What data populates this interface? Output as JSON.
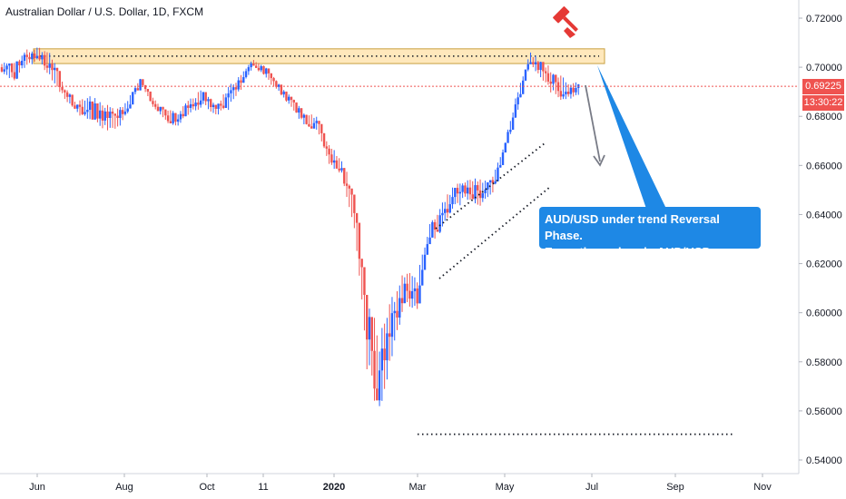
{
  "chart_data": {
    "type": "candlestick",
    "title": "Australian Dollar / U.S. Dollar, 1D, FXCM",
    "x_ticks": [
      "Jun",
      "Aug",
      "Oct",
      "11",
      "2020",
      "Mar",
      "May",
      "Jul",
      "Sep",
      "Nov"
    ],
    "y_ticks": [
      "0.72000",
      "0.70000",
      "0.68000",
      "0.66000",
      "0.64000",
      "0.62000",
      "0.60000",
      "0.58000",
      "0.56000",
      "0.54000"
    ],
    "ylim": [
      0.536,
      0.726
    ],
    "last_price": "0.69225",
    "countdown": "13:30:22",
    "annotation_lines": [
      "AUD/USD under trend Reversal Phase.",
      "Expecting a drop in AUD/USD very soon"
    ],
    "resistance_zone": [
      0.7015,
      0.7075
    ],
    "support_level": 0.5505,
    "waypoints": [
      [
        0.6975,
        0.7025
      ],
      [
        0.6935,
        0.7035
      ],
      [
        0.7005,
        0.7075
      ],
      [
        0.702,
        0.7085
      ],
      [
        0.6925,
        0.706
      ],
      [
        0.687,
        0.692
      ],
      [
        0.6805,
        0.686
      ],
      [
        0.6775,
        0.6885
      ],
      [
        0.675,
        0.686
      ],
      [
        0.6725,
        0.6828
      ],
      [
        0.6805,
        0.6875
      ],
      [
        0.6935,
        0.6955
      ],
      [
        0.6835,
        0.6885
      ],
      [
        0.6775,
        0.6825
      ],
      [
        0.6755,
        0.6825
      ],
      [
        0.6815,
        0.6875
      ],
      [
        0.6835,
        0.6915
      ],
      [
        0.6795,
        0.6855
      ],
      [
        0.682,
        0.6925
      ],
      [
        0.6905,
        0.6975
      ],
      [
        0.7005,
        0.7035
      ],
      [
        0.695,
        0.7005
      ],
      [
        0.6895,
        0.6935
      ],
      [
        0.6825,
        0.6885
      ],
      [
        0.6765,
        0.6815
      ],
      [
        0.6735,
        0.6805
      ],
      [
        0.6605,
        0.6685
      ],
      [
        0.6555,
        0.6635
      ],
      [
        0.6335,
        0.6485
      ],
      [
        0.5755,
        0.6115
      ],
      [
        0.5535,
        0.5925
      ],
      [
        0.5805,
        0.6085
      ],
      [
        0.6035,
        0.6175
      ],
      [
        0.6005,
        0.6155
      ],
      [
        0.6285,
        0.6375
      ],
      [
        0.6325,
        0.6455
      ],
      [
        0.6425,
        0.6525
      ],
      [
        0.6455,
        0.6555
      ],
      [
        0.6425,
        0.6545
      ],
      [
        0.6485,
        0.6555
      ],
      [
        0.6655,
        0.6705
      ],
      [
        0.6825,
        0.6915
      ],
      [
        0.7005,
        0.7065
      ],
      [
        0.6945,
        0.7025
      ],
      [
        0.6865,
        0.6985
      ],
      [
        0.6865,
        0.6945
      ],
      [
        0.6885,
        0.6945
      ]
    ],
    "colors": {
      "up": "#2962ff",
      "down": "#ef5350",
      "zone_fill": "#ffe0a6",
      "zone_border": "#c8a040",
      "note_bg": "#1e88e5",
      "marker": "#e53935"
    },
    "grid": false,
    "legend": "none"
  }
}
